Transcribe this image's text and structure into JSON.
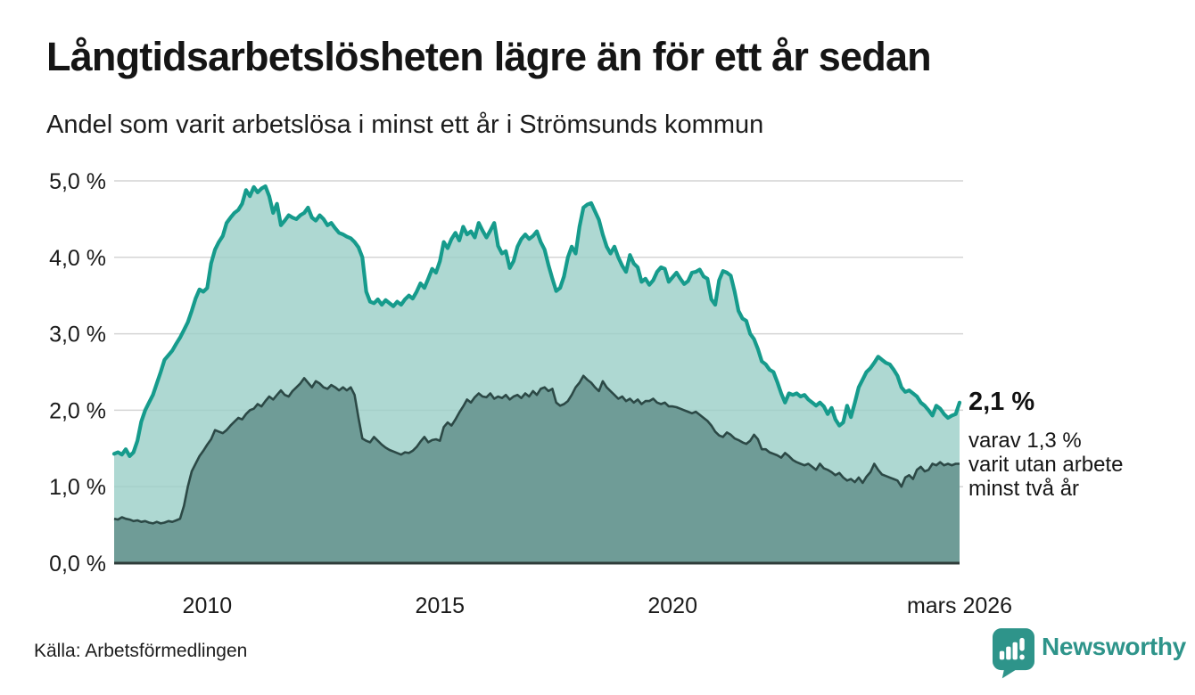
{
  "header": {
    "title": "Långtidsarbetslösheten lägre än för ett år sedan",
    "subtitle": "Andel som varit arbetslösa i minst ett år i Strömsunds kommun"
  },
  "chart_data": {
    "type": "area",
    "title": "Långtidsarbetslösheten lägre än för ett år sedan",
    "subtitle": "Andel som varit arbetslösa i minst ett år i Strömsunds kommun",
    "unit": "%",
    "frequency": "monthly",
    "x_start": "2008-01",
    "x_end": "2026-03",
    "xlabel": "",
    "ylabel": "",
    "ylim": [
      0,
      5
    ],
    "grid": "horizontal",
    "legend": "none",
    "y_ticks": [
      "0,0 %",
      "1,0 %",
      "2,0 %",
      "3,0 %",
      "4,0 %",
      "5,0 %"
    ],
    "x_ticks": [
      {
        "label": "2010",
        "month_index": 24
      },
      {
        "label": "2015",
        "month_index": 84
      },
      {
        "label": "2020",
        "month_index": 144
      },
      {
        "label": "mars 2026",
        "month_index": 218
      }
    ],
    "colors": {
      "line_min1yr": "#169B8C",
      "fill_min1yr": "#AED8D2",
      "line_min2yr": "#2C4946",
      "fill_min2yr": "#6F9C97",
      "gridline": "#D4D4D4",
      "axis": "#2F3C3A"
    },
    "series": [
      {
        "name": "arbetslösa minst ett år",
        "latest_value": 2.1,
        "values": [
          1.43,
          1.45,
          1.42,
          1.49,
          1.4,
          1.45,
          1.6,
          1.85,
          2.0,
          2.1,
          2.2,
          2.35,
          2.5,
          2.66,
          2.72,
          2.78,
          2.87,
          2.95,
          3.05,
          3.15,
          3.3,
          3.46,
          3.58,
          3.55,
          3.6,
          3.92,
          4.1,
          4.2,
          4.28,
          4.45,
          4.52,
          4.58,
          4.62,
          4.7,
          4.88,
          4.8,
          4.92,
          4.85,
          4.9,
          4.93,
          4.8,
          4.58,
          4.7,
          4.42,
          4.48,
          4.55,
          4.52,
          4.5,
          4.55,
          4.58,
          4.65,
          4.52,
          4.48,
          4.55,
          4.5,
          4.42,
          4.45,
          4.38,
          4.32,
          4.3,
          4.27,
          4.25,
          4.2,
          4.13,
          4.0,
          3.55,
          3.42,
          3.4,
          3.45,
          3.38,
          3.44,
          3.4,
          3.36,
          3.42,
          3.38,
          3.45,
          3.5,
          3.46,
          3.55,
          3.66,
          3.6,
          3.72,
          3.85,
          3.8,
          3.95,
          4.2,
          4.12,
          4.24,
          4.32,
          4.22,
          4.4,
          4.3,
          4.34,
          4.26,
          4.45,
          4.35,
          4.26,
          4.35,
          4.45,
          4.15,
          4.05,
          4.08,
          3.86,
          3.95,
          4.14,
          4.24,
          4.3,
          4.24,
          4.28,
          4.34,
          4.2,
          4.1,
          3.9,
          3.72,
          3.56,
          3.6,
          3.75,
          4.0,
          4.14,
          4.05,
          4.4,
          4.65,
          4.69,
          4.71,
          4.6,
          4.49,
          4.3,
          4.14,
          4.05,
          4.14,
          4.0,
          3.89,
          3.81,
          4.03,
          3.92,
          3.87,
          3.68,
          3.72,
          3.64,
          3.7,
          3.81,
          3.87,
          3.85,
          3.68,
          3.74,
          3.8,
          3.72,
          3.65,
          3.69,
          3.8,
          3.81,
          3.84,
          3.75,
          3.72,
          3.45,
          3.38,
          3.7,
          3.82,
          3.8,
          3.76,
          3.55,
          3.3,
          3.2,
          3.17,
          3.0,
          2.93,
          2.8,
          2.64,
          2.6,
          2.53,
          2.5,
          2.37,
          2.22,
          2.1,
          2.22,
          2.2,
          2.22,
          2.18,
          2.2,
          2.14,
          2.1,
          2.06,
          2.1,
          2.05,
          1.95,
          2.03,
          1.88,
          1.8,
          1.84,
          2.06,
          1.91,
          2.1,
          2.3,
          2.4,
          2.5,
          2.55,
          2.62,
          2.7,
          2.66,
          2.62,
          2.6,
          2.53,
          2.45,
          2.3,
          2.24,
          2.26,
          2.22,
          2.18,
          2.1,
          2.06,
          2.0,
          1.93,
          2.06,
          2.02,
          1.95,
          1.9,
          1.93,
          1.95,
          2.1
        ]
      },
      {
        "name": "varit utan arbete minst två år",
        "latest_value": 1.3,
        "values": [
          0.58,
          0.57,
          0.6,
          0.58,
          0.57,
          0.55,
          0.56,
          0.54,
          0.55,
          0.53,
          0.52,
          0.54,
          0.52,
          0.53,
          0.55,
          0.54,
          0.56,
          0.58,
          0.75,
          1.0,
          1.2,
          1.3,
          1.4,
          1.47,
          1.55,
          1.62,
          1.74,
          1.72,
          1.7,
          1.74,
          1.8,
          1.85,
          1.9,
          1.88,
          1.95,
          2.0,
          2.02,
          2.08,
          2.05,
          2.12,
          2.18,
          2.14,
          2.2,
          2.26,
          2.2,
          2.18,
          2.25,
          2.3,
          2.35,
          2.42,
          2.36,
          2.3,
          2.38,
          2.35,
          2.3,
          2.28,
          2.33,
          2.3,
          2.26,
          2.3,
          2.26,
          2.3,
          2.2,
          1.9,
          1.63,
          1.6,
          1.58,
          1.65,
          1.6,
          1.55,
          1.51,
          1.48,
          1.46,
          1.44,
          1.42,
          1.45,
          1.44,
          1.47,
          1.52,
          1.59,
          1.65,
          1.58,
          1.61,
          1.62,
          1.6,
          1.78,
          1.84,
          1.8,
          1.88,
          1.97,
          2.05,
          2.14,
          2.1,
          2.17,
          2.22,
          2.18,
          2.17,
          2.22,
          2.15,
          2.18,
          2.16,
          2.2,
          2.14,
          2.18,
          2.2,
          2.16,
          2.22,
          2.18,
          2.25,
          2.2,
          2.28,
          2.3,
          2.25,
          2.28,
          2.1,
          2.06,
          2.08,
          2.12,
          2.2,
          2.3,
          2.36,
          2.45,
          2.4,
          2.36,
          2.3,
          2.25,
          2.38,
          2.3,
          2.25,
          2.2,
          2.15,
          2.18,
          2.12,
          2.15,
          2.1,
          2.14,
          2.08,
          2.12,
          2.12,
          2.15,
          2.1,
          2.08,
          2.1,
          2.05,
          2.05,
          2.04,
          2.02,
          2.0,
          1.98,
          1.96,
          1.98,
          1.94,
          1.9,
          1.86,
          1.8,
          1.72,
          1.67,
          1.65,
          1.71,
          1.68,
          1.63,
          1.61,
          1.58,
          1.56,
          1.6,
          1.68,
          1.62,
          1.49,
          1.49,
          1.45,
          1.43,
          1.41,
          1.38,
          1.44,
          1.4,
          1.35,
          1.32,
          1.3,
          1.28,
          1.3,
          1.26,
          1.22,
          1.3,
          1.24,
          1.22,
          1.19,
          1.15,
          1.18,
          1.12,
          1.08,
          1.1,
          1.06,
          1.12,
          1.05,
          1.13,
          1.19,
          1.3,
          1.22,
          1.16,
          1.14,
          1.12,
          1.1,
          1.08,
          1.0,
          1.12,
          1.15,
          1.1,
          1.22,
          1.26,
          1.2,
          1.22,
          1.3,
          1.28,
          1.32,
          1.28,
          1.3,
          1.28,
          1.3,
          1.3
        ]
      }
    ]
  },
  "annotation": {
    "value_label": "2,1 %",
    "detail_lines": [
      "varav 1,3 %",
      "varit utan arbete",
      "minst två år"
    ]
  },
  "source": {
    "label": "Källa: Arbetsförmedlingen"
  },
  "brand": {
    "name": "Newsworthy",
    "color": "#2E948A"
  }
}
